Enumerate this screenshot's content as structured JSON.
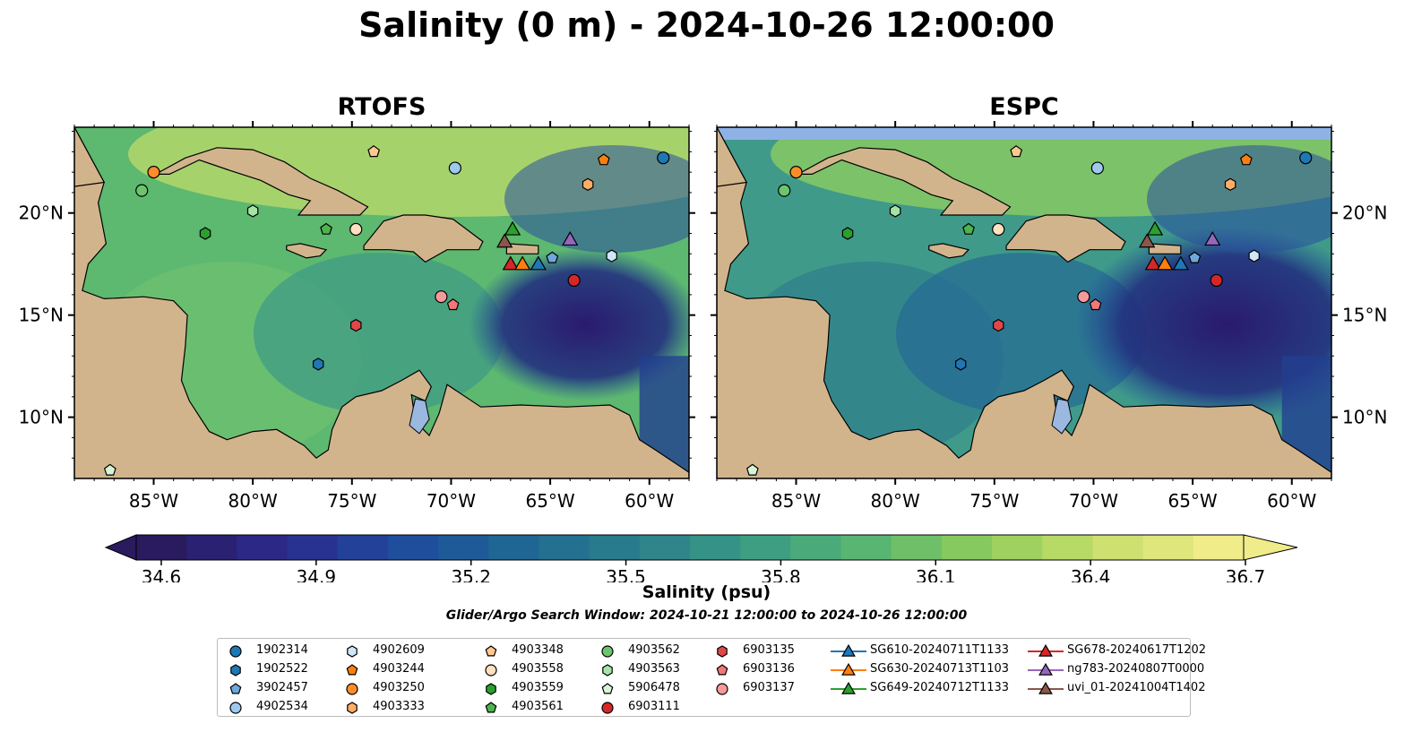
{
  "title": "Salinity (0 m) - 2024-10-26 12:00:00",
  "panels": [
    {
      "title": "RTOFS"
    },
    {
      "title": "ESPC"
    }
  ],
  "axes": {
    "lon_ticks": [
      "85°W",
      "80°W",
      "75°W",
      "70°W",
      "65°W",
      "60°W"
    ],
    "lat_ticks": [
      "20°N",
      "15°N",
      "10°N"
    ],
    "lon_range": [
      -89,
      -58
    ],
    "lat_range": [
      7,
      24.2
    ]
  },
  "colorbar": {
    "label": "Salinity (psu)",
    "ticks": [
      "34.6",
      "34.9",
      "35.2",
      "35.5",
      "35.8",
      "36.1",
      "36.4",
      "36.7"
    ],
    "range": [
      34.6,
      36.7
    ],
    "colormap": "haline-like",
    "colors": [
      "#2a1a5e",
      "#2c2a8c",
      "#1f4a9e",
      "#1f6694",
      "#2a7d8c",
      "#3a9a84",
      "#58b672",
      "#8dcc5c",
      "#c8de6a",
      "#f0ec8a"
    ]
  },
  "search_window": "Glider/Argo Search Window: 2024-10-21 12:00:00 to 2024-10-26 12:00:00",
  "colors": {
    "land": "#d2b48c",
    "lakes_rivers": "#9ab8e0",
    "ocean_fill_high": "#6fc36a",
    "ocean_fill_low": "#2a1a5e"
  },
  "legend": [
    {
      "label": "1902314",
      "marker": "circle",
      "color": "#1f77b4"
    },
    {
      "label": "1902522",
      "marker": "hexagon",
      "color": "#1f77b4"
    },
    {
      "label": "3902457",
      "marker": "pentagon",
      "color": "#6fa8dc"
    },
    {
      "label": "4902534",
      "marker": "circle",
      "color": "#9ec9ee"
    },
    {
      "label": "4902609",
      "marker": "hexagon",
      "color": "#cfe6f7"
    },
    {
      "label": "4903244",
      "marker": "pentagon",
      "color": "#ff7f0e"
    },
    {
      "label": "4903250",
      "marker": "circle",
      "color": "#ff8c2a"
    },
    {
      "label": "4903333",
      "marker": "hexagon",
      "color": "#ffae66"
    },
    {
      "label": "4903348",
      "marker": "pentagon",
      "color": "#ffc88f"
    },
    {
      "label": "4903558",
      "marker": "circle",
      "color": "#ffe0c0"
    },
    {
      "label": "4903559",
      "marker": "hexagon",
      "color": "#2ca02c"
    },
    {
      "label": "4903561",
      "marker": "pentagon",
      "color": "#4cb44c"
    },
    {
      "label": "4903562",
      "marker": "circle",
      "color": "#6cc46c"
    },
    {
      "label": "4903563",
      "marker": "hexagon",
      "color": "#a6e4a6"
    },
    {
      "label": "5906478",
      "marker": "pentagon",
      "color": "#d6f5d6"
    },
    {
      "label": "6903111",
      "marker": "circle",
      "color": "#d62728"
    },
    {
      "label": "6903135",
      "marker": "hexagon",
      "color": "#e04848"
    },
    {
      "label": "6903136",
      "marker": "pentagon",
      "color": "#f07878"
    },
    {
      "label": "6903137",
      "marker": "circle",
      "color": "#f59a9a"
    },
    {
      "label": "SG610-20240711T1133",
      "marker": "triangle",
      "color": "#1f77b4"
    },
    {
      "label": "SG630-20240713T1103",
      "marker": "triangle",
      "color": "#ff7f0e"
    },
    {
      "label": "SG649-20240712T1133",
      "marker": "triangle",
      "color": "#2ca02c"
    },
    {
      "label": "SG678-20240617T1202",
      "marker": "triangle",
      "color": "#d62728"
    },
    {
      "label": "ng783-20240807T0000",
      "marker": "triangle",
      "color": "#9467bd"
    },
    {
      "label": "uvi_01-20241004T1402",
      "marker": "triangle",
      "color": "#8c564b"
    }
  ],
  "observations": [
    {
      "id": "1902314",
      "lon": -59.3,
      "lat": 22.7
    },
    {
      "id": "4903250",
      "lon": -85.0,
      "lat": 22.0
    },
    {
      "id": "4902534",
      "lon": -69.8,
      "lat": 22.2
    },
    {
      "id": "4903348",
      "lon": -73.9,
      "lat": 23.0
    },
    {
      "id": "4903244",
      "lon": -62.3,
      "lat": 22.6
    },
    {
      "id": "4903333",
      "lon": -63.1,
      "lat": 21.4
    },
    {
      "id": "4903562",
      "lon": -85.6,
      "lat": 21.1
    },
    {
      "id": "4903563",
      "lon": -80.0,
      "lat": 20.1
    },
    {
      "id": "4903559",
      "lon": -82.4,
      "lat": 19.0
    },
    {
      "id": "4903561",
      "lon": -76.3,
      "lat": 19.2
    },
    {
      "id": "4903558",
      "lon": -74.8,
      "lat": 19.2
    },
    {
      "id": "4902609",
      "lon": -61.9,
      "lat": 17.9
    },
    {
      "id": "3902457",
      "lon": -64.9,
      "lat": 17.8
    },
    {
      "id": "6903111",
      "lon": -63.8,
      "lat": 16.7
    },
    {
      "id": "6903137",
      "lon": -70.5,
      "lat": 15.9
    },
    {
      "id": "6903136",
      "lon": -69.9,
      "lat": 15.5
    },
    {
      "id": "6903135",
      "lon": -74.8,
      "lat": 14.5
    },
    {
      "id": "1902522",
      "lon": -76.7,
      "lat": 12.6
    },
    {
      "id": "5906478",
      "lon": -87.2,
      "lat": 7.4
    },
    {
      "id": "SG649-20240712T1133",
      "lon": -66.9,
      "lat": 19.2
    },
    {
      "id": "uvi_01-20241004T1402",
      "lon": -67.3,
      "lat": 18.6
    },
    {
      "id": "ng783-20240807T0000",
      "lon": -64.0,
      "lat": 18.7
    },
    {
      "id": "SG678-20240617T1202",
      "lon": -67.0,
      "lat": 17.5
    },
    {
      "id": "SG630-20240713T1103",
      "lon": -66.4,
      "lat": 17.5
    },
    {
      "id": "SG610-20240711T1133",
      "lon": -65.6,
      "lat": 17.5
    }
  ]
}
